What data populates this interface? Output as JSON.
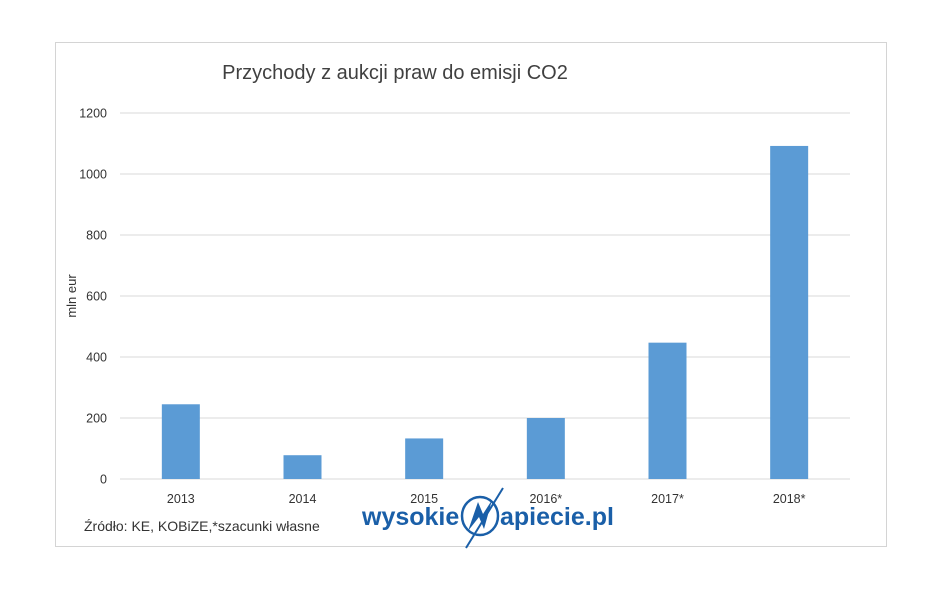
{
  "chart_data": {
    "type": "bar",
    "title": "Przychody z aukcji praw do emisji CO2",
    "ylabel": "mln eur",
    "xlabel": "",
    "categories": [
      "2013",
      "2014",
      "2015",
      "2016*",
      "2017*",
      "2018*"
    ],
    "values": [
      245,
      78,
      133,
      200,
      447,
      1092
    ],
    "ylim": [
      0,
      1200
    ],
    "yticks": [
      "0",
      "200",
      "400",
      "600",
      "800",
      "1000",
      "1200"
    ],
    "grid": true,
    "legend": "none",
    "bar_color": "#5b9bd5",
    "grid_color": "#d9d9d9"
  },
  "source": "Źródło: KE, KOBiZE,*szacunki własne",
  "logo": {
    "text_left": "wysokie",
    "text_right": "apiecie.pl",
    "color": "#1a5fa8"
  }
}
